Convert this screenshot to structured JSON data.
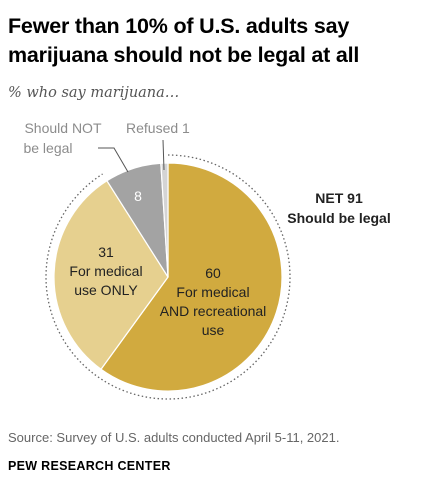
{
  "header": {
    "title": "Fewer than 10% of U.S. adults say marijuana should not be legal at all",
    "subtitle": "% who say marijuana…"
  },
  "chart_data": {
    "type": "pie",
    "slices": [
      {
        "value": 60,
        "label_lines": [
          "60",
          "For medical",
          "AND recreational",
          "use"
        ],
        "color": "#d1aa3f"
      },
      {
        "value": 31,
        "label_lines": [
          "31",
          "For medical",
          "use ONLY"
        ],
        "color": "#e6d08f"
      },
      {
        "value": 8,
        "label_lines": [
          "8"
        ],
        "color": "#a3a3a3"
      },
      {
        "value": 1,
        "label_lines": [],
        "color": "#d4d4d4"
      }
    ],
    "callouts": [
      {
        "text_lines": [
          "Should NOT",
          "be legal"
        ],
        "slice": 2
      },
      {
        "text_lines": [
          "Refused 1"
        ],
        "slice": 3
      }
    ],
    "net": {
      "lines": [
        "NET 91",
        "Should be legal"
      ],
      "slices": [
        0,
        1
      ]
    }
  },
  "footer": {
    "source": "Source: Survey of U.S. adults conducted April 5-11, 2021.",
    "org": "PEW RESEARCH CENTER"
  }
}
